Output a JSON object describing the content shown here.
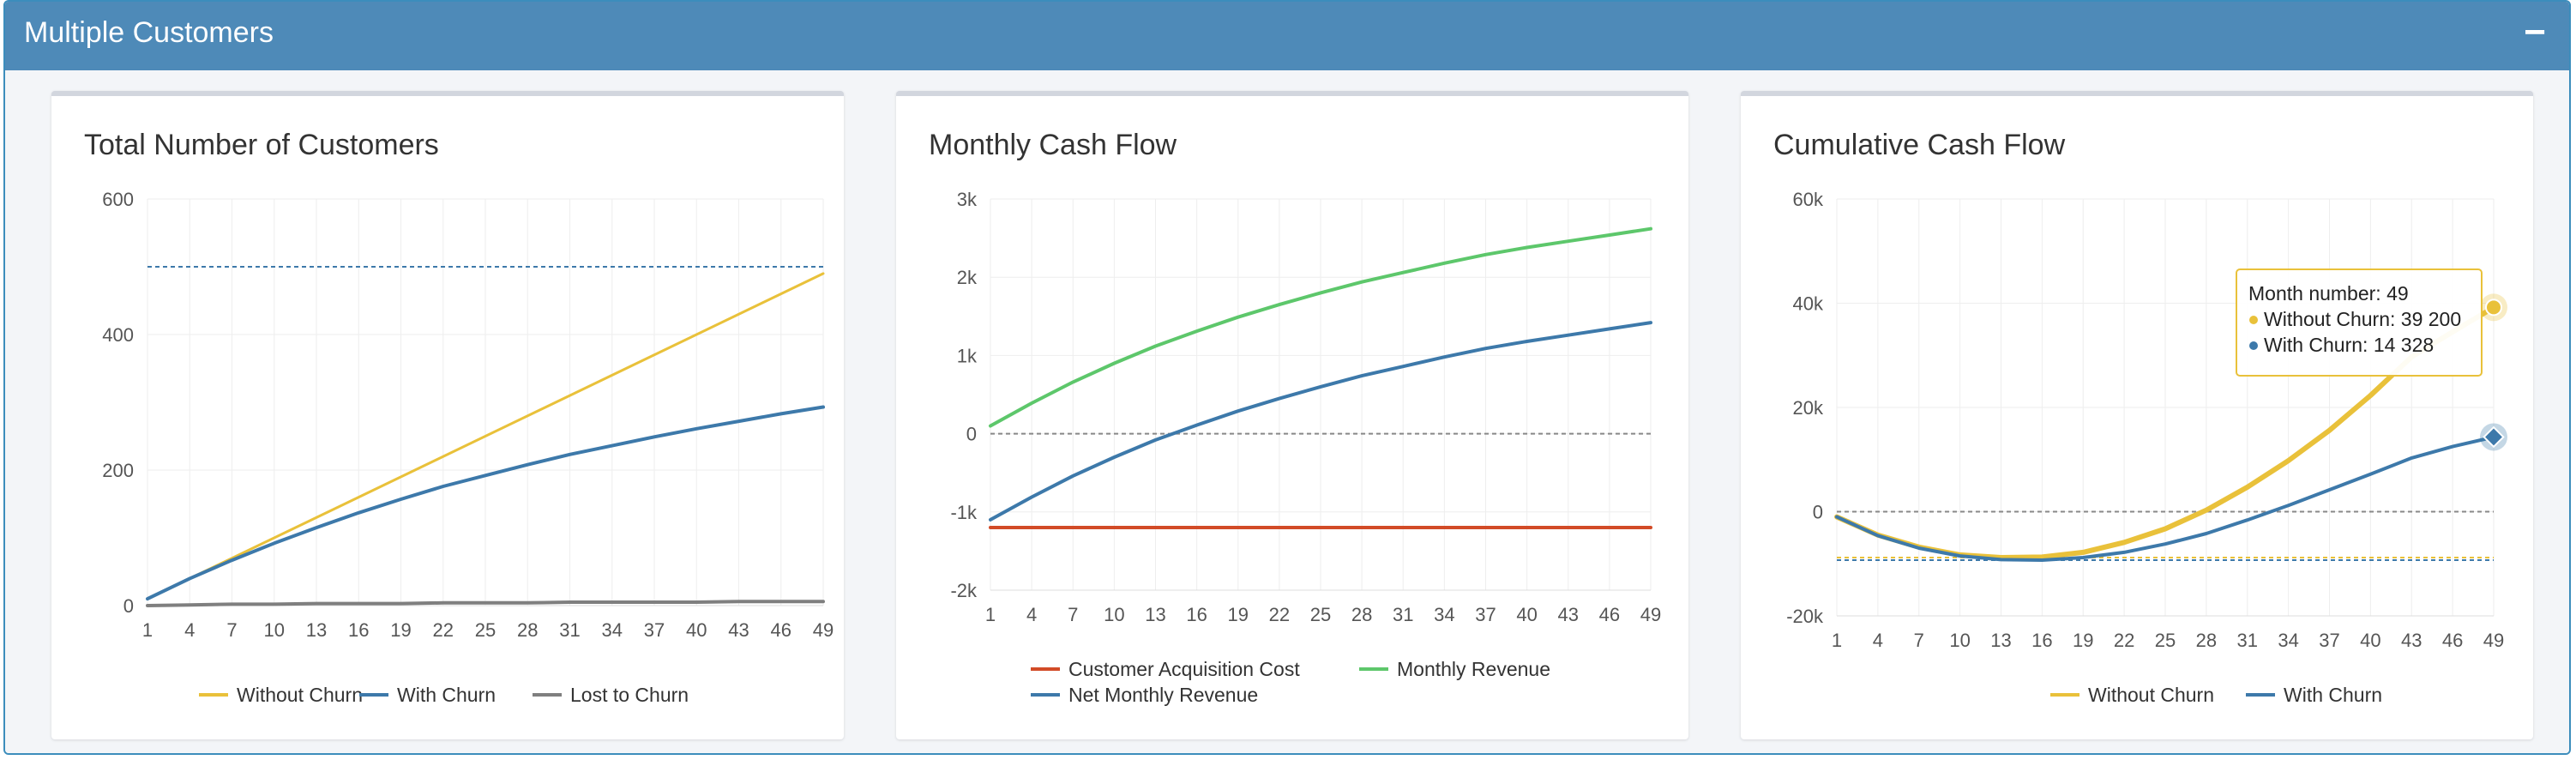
{
  "panel": {
    "title": "Multiple Customers",
    "collapse_label": "−"
  },
  "colors": {
    "header": "#4e8ab8",
    "without_churn": "#e9c13a",
    "with_churn": "#3d79aa",
    "lost_to_churn": "#7f7f7f",
    "cac": "#d24b27",
    "monthly_revenue": "#5dc76b",
    "net_monthly_revenue": "#3d79aa"
  },
  "chart_data": [
    {
      "type": "line",
      "title": "Total Number of Customers",
      "xticks": [
        "1",
        "4",
        "7",
        "10",
        "13",
        "16",
        "19",
        "22",
        "25",
        "28",
        "31",
        "34",
        "37",
        "40",
        "43",
        "46",
        "49"
      ],
      "ylim": [
        0,
        600
      ],
      "yticks": [
        "0",
        "200",
        "400",
        "600"
      ],
      "reference_line": 500,
      "legend_position": "bottom",
      "series": [
        {
          "name": "Without Churn",
          "x": [
            1,
            49
          ],
          "y": [
            10,
            490
          ]
        },
        {
          "name": "With Churn",
          "x": [
            1,
            4,
            7,
            10,
            13,
            16,
            19,
            22,
            25,
            28,
            31,
            34,
            37,
            40,
            43,
            46,
            49
          ],
          "y": [
            10,
            40,
            67,
            92,
            115,
            137,
            157,
            176,
            192,
            208,
            223,
            236,
            249,
            261,
            272,
            283,
            293
          ]
        },
        {
          "name": "Lost to Churn",
          "x": [
            1,
            4,
            7,
            10,
            13,
            16,
            19,
            22,
            25,
            28,
            31,
            34,
            37,
            40,
            43,
            46,
            49
          ],
          "y": [
            0,
            1,
            2,
            2,
            3,
            3,
            3,
            4,
            4,
            4,
            5,
            5,
            5,
            5,
            6,
            6,
            6
          ]
        }
      ]
    },
    {
      "type": "line",
      "title": "Monthly Cash Flow",
      "xticks": [
        "1",
        "4",
        "7",
        "10",
        "13",
        "16",
        "19",
        "22",
        "25",
        "28",
        "31",
        "34",
        "37",
        "40",
        "43",
        "46",
        "49"
      ],
      "ylim": [
        -2000,
        3000
      ],
      "yticks": [
        "-2k",
        "-1k",
        "0",
        "1k",
        "2k",
        "3k"
      ],
      "yticks_values": [
        -2000,
        -1000,
        0,
        1000,
        2000,
        3000
      ],
      "reference_line": 0,
      "legend_position": "bottom",
      "series": [
        {
          "name": "Customer Acquisition Cost",
          "x": [
            1,
            49
          ],
          "y": [
            -1200,
            -1200
          ]
        },
        {
          "name": "Monthly Revenue",
          "x": [
            1,
            4,
            7,
            10,
            13,
            16,
            19,
            22,
            25,
            28,
            31,
            34,
            37,
            40,
            43,
            46,
            49
          ],
          "y": [
            100,
            390,
            660,
            900,
            1120,
            1310,
            1490,
            1650,
            1800,
            1940,
            2060,
            2180,
            2290,
            2380,
            2460,
            2540,
            2620
          ]
        },
        {
          "name": "Net Monthly Revenue",
          "x": [
            1,
            4,
            7,
            10,
            13,
            16,
            19,
            22,
            25,
            28,
            31,
            34,
            37,
            40,
            43,
            46,
            49
          ],
          "y": [
            -1100,
            -810,
            -540,
            -300,
            -80,
            110,
            290,
            450,
            600,
            740,
            860,
            980,
            1090,
            1180,
            1260,
            1340,
            1420
          ]
        }
      ]
    },
    {
      "type": "line",
      "title": "Cumulative Cash Flow",
      "xticks": [
        "1",
        "4",
        "7",
        "10",
        "13",
        "16",
        "19",
        "22",
        "25",
        "28",
        "31",
        "34",
        "37",
        "40",
        "43",
        "46",
        "49"
      ],
      "ylim": [
        -20000,
        60000
      ],
      "yticks": [
        "-20k",
        "0",
        "20k",
        "40k",
        "60k"
      ],
      "yticks_values": [
        -20000,
        0,
        20000,
        40000,
        60000
      ],
      "reference_line": 0,
      "legend_position": "bottom",
      "series": [
        {
          "name": "Without Churn",
          "x": [
            1,
            4,
            7,
            10,
            13,
            16,
            19,
            22,
            25,
            28,
            31,
            34,
            37,
            40,
            43,
            46,
            49
          ],
          "y": [
            -1000,
            -4500,
            -6800,
            -8300,
            -8800,
            -8700,
            -7800,
            -5900,
            -3300,
            300,
            4700,
            9800,
            15600,
            22300,
            29700,
            34500,
            39200
          ]
        },
        {
          "name": "With Churn",
          "x": [
            1,
            4,
            7,
            10,
            13,
            16,
            19,
            22,
            25,
            28,
            31,
            34,
            37,
            40,
            43,
            46,
            49
          ],
          "y": [
            -1000,
            -4600,
            -7000,
            -8500,
            -9200,
            -9300,
            -8800,
            -7800,
            -6200,
            -4200,
            -1600,
            1200,
            4200,
            7200,
            10300,
            12500,
            14328
          ]
        }
      ],
      "tooltip": {
        "header": "Month number: 49",
        "rows": [
          {
            "label": "Without Churn: 39 200"
          },
          {
            "label": "With Churn: 14 328"
          }
        ]
      }
    }
  ]
}
